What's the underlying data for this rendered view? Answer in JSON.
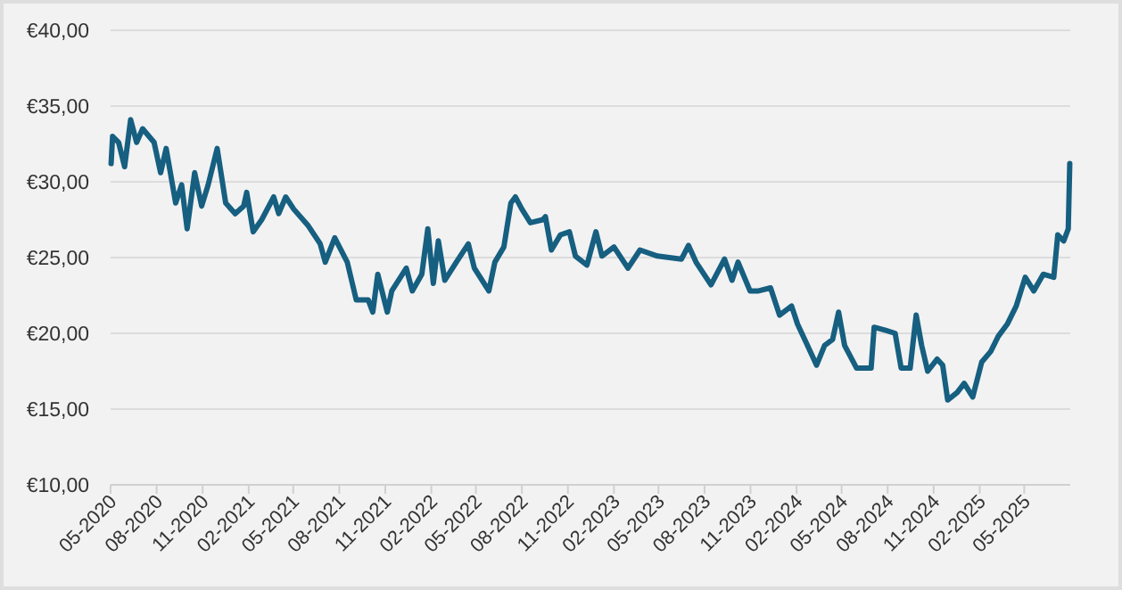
{
  "chart_data": {
    "type": "line",
    "grid": "y",
    "xlim": [
      "2020-05-01",
      "2025-08-01"
    ],
    "ylim": [
      10,
      40
    ],
    "yticks": [
      {
        "value": 10,
        "label": "€10,00"
      },
      {
        "value": 15,
        "label": "€15,00"
      },
      {
        "value": 20,
        "label": "€20,00"
      },
      {
        "value": 25,
        "label": "€25,00"
      },
      {
        "value": 30,
        "label": "€30,00"
      },
      {
        "value": 35,
        "label": "€35,00"
      },
      {
        "value": 40,
        "label": "€40,00"
      }
    ],
    "xticks": [
      {
        "value": "2020-05-01",
        "label": "05-2020"
      },
      {
        "value": "2020-08-01",
        "label": "08-2020"
      },
      {
        "value": "2020-11-01",
        "label": "11-2020"
      },
      {
        "value": "2021-02-01",
        "label": "02-2021"
      },
      {
        "value": "2021-05-01",
        "label": "05-2021"
      },
      {
        "value": "2021-08-01",
        "label": "08-2021"
      },
      {
        "value": "2021-11-01",
        "label": "11-2021"
      },
      {
        "value": "2022-02-01",
        "label": "02-2022"
      },
      {
        "value": "2022-05-01",
        "label": "05-2022"
      },
      {
        "value": "2022-08-01",
        "label": "08-2022"
      },
      {
        "value": "2022-11-01",
        "label": "11-2022"
      },
      {
        "value": "2023-02-01",
        "label": "02-2023"
      },
      {
        "value": "2023-05-01",
        "label": "05-2023"
      },
      {
        "value": "2023-08-01",
        "label": "08-2023"
      },
      {
        "value": "2023-11-01",
        "label": "11-2023"
      },
      {
        "value": "2024-02-01",
        "label": "02-2024"
      },
      {
        "value": "2024-05-01",
        "label": "05-2024"
      },
      {
        "value": "2024-08-01",
        "label": "08-2024"
      },
      {
        "value": "2024-11-01",
        "label": "11-2024"
      },
      {
        "value": "2025-02-01",
        "label": "02-2025"
      },
      {
        "value": "2025-05-01",
        "label": "05-2025"
      }
    ],
    "x": [
      "2020-05-02",
      "2020-05-05",
      "2020-05-17",
      "2020-05-29",
      "2020-06-10",
      "2020-06-22",
      "2020-07-04",
      "2020-07-27",
      "2020-08-09",
      "2020-08-20",
      "2020-09-08",
      "2020-09-20",
      "2020-10-01",
      "2020-10-16",
      "2020-10-30",
      "2020-11-12",
      "2020-11-30",
      "2020-12-17",
      "2021-01-05",
      "2021-01-22",
      "2021-01-28",
      "2021-02-10",
      "2021-02-27",
      "2021-03-23",
      "2021-04-02",
      "2021-04-16",
      "2021-05-02",
      "2021-05-31",
      "2021-06-24",
      "2021-07-04",
      "2021-07-23",
      "2021-08-17",
      "2021-09-04",
      "2021-09-28",
      "2021-10-07",
      "2021-10-17",
      "2021-11-05",
      "2021-11-14",
      "2021-12-13",
      "2021-12-25",
      "2022-01-13",
      "2022-01-25",
      "2022-02-05",
      "2022-02-15",
      "2022-02-28",
      "2022-03-23",
      "2022-04-16",
      "2022-04-28",
      "2022-05-27",
      "2022-06-08",
      "2022-06-26",
      "2022-07-10",
      "2022-07-19",
      "2022-08-01",
      "2022-08-18",
      "2022-09-12",
      "2022-09-17",
      "2022-09-29",
      "2022-10-17",
      "2022-11-04",
      "2022-11-16",
      "2022-12-09",
      "2022-12-27",
      "2023-01-08",
      "2023-02-01",
      "2023-03-01",
      "2023-03-25",
      "2023-04-29",
      "2023-06-16",
      "2023-06-30",
      "2023-07-15",
      "2023-08-14",
      "2023-09-10",
      "2023-09-25",
      "2023-10-07",
      "2023-10-31",
      "2023-11-17",
      "2023-12-11",
      "2023-12-29",
      "2024-01-22",
      "2024-02-03",
      "2024-02-20",
      "2024-03-12",
      "2024-03-28",
      "2024-04-13",
      "2024-04-25",
      "2024-05-07",
      "2024-05-31",
      "2024-06-29",
      "2024-07-05",
      "2024-07-28",
      "2024-08-16",
      "2024-08-28",
      "2024-09-15",
      "2024-09-27",
      "2024-10-08",
      "2024-10-20",
      "2024-11-08",
      "2024-11-19",
      "2024-11-29",
      "2024-12-18",
      "2025-01-01",
      "2025-01-18",
      "2025-02-05",
      "2025-02-23",
      "2025-03-10",
      "2025-03-28",
      "2025-04-15",
      "2025-05-03",
      "2025-05-20",
      "2025-06-08",
      "2025-06-29",
      "2025-07-07",
      "2025-07-19",
      "2025-07-28",
      "2025-07-31"
    ],
    "series": [
      {
        "color": "#165f80",
        "values": [
          31.2,
          33.0,
          32.6,
          31.0,
          34.1,
          32.6,
          33.5,
          32.6,
          30.6,
          32.2,
          28.6,
          29.8,
          26.9,
          30.6,
          28.4,
          29.8,
          32.2,
          28.6,
          27.9,
          28.4,
          29.3,
          26.7,
          27.5,
          29.0,
          27.9,
          29.0,
          28.2,
          27.1,
          25.9,
          24.7,
          26.3,
          24.7,
          22.2,
          22.2,
          21.4,
          23.9,
          21.4,
          22.8,
          24.3,
          22.8,
          23.9,
          26.9,
          23.3,
          26.1,
          23.5,
          24.7,
          25.9,
          24.3,
          22.8,
          24.7,
          25.7,
          28.6,
          29.0,
          28.2,
          27.3,
          27.5,
          27.7,
          25.5,
          26.5,
          26.7,
          25.1,
          24.5,
          26.7,
          25.1,
          25.7,
          24.3,
          25.5,
          25.1,
          24.9,
          25.8,
          24.7,
          23.2,
          24.9,
          23.5,
          24.7,
          22.8,
          22.8,
          23.0,
          21.2,
          21.8,
          20.6,
          19.4,
          17.9,
          19.2,
          19.6,
          21.4,
          19.2,
          17.7,
          17.7,
          20.4,
          20.2,
          20.0,
          17.7,
          17.7,
          21.2,
          19.2,
          17.5,
          18.3,
          17.9,
          15.6,
          16.1,
          16.7,
          15.8,
          18.1,
          18.8,
          19.8,
          20.6,
          21.8,
          23.7,
          22.8,
          23.9,
          23.7,
          26.5,
          26.1,
          26.9,
          31.2
        ]
      }
    ]
  }
}
